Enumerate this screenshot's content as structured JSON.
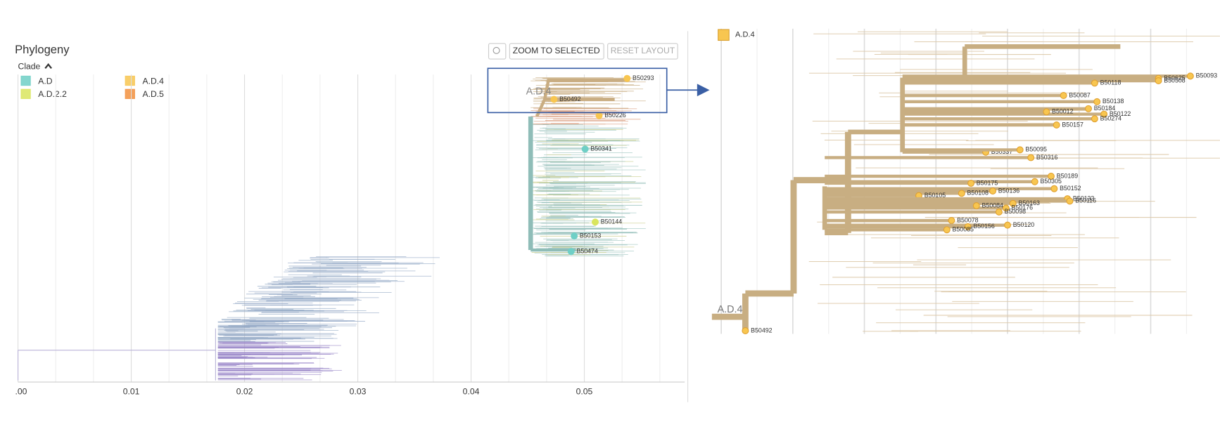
{
  "panel": {
    "title": "Phylogeny",
    "color_by": "Clade",
    "buttons": [
      "ZOOM TO SELECTED",
      "RESET LAYOUT"
    ]
  },
  "legend": [
    {
      "label": "A.D",
      "color": "#6fcfc6"
    },
    {
      "label": "A.D.2.2",
      "color": "#d9e55e"
    },
    {
      "label": "A.D.4",
      "color": "#f8c650"
    },
    {
      "label": "A.D.5",
      "color": "#f2903e"
    }
  ],
  "axis": {
    "ticks": [
      ".00",
      "0.01",
      "0.02",
      "0.03",
      "0.04",
      "0.05"
    ]
  },
  "tree": {
    "selection_label": "A.D.4",
    "tips": [
      "B50293",
      "B50492",
      "B50226",
      "B50341",
      "B50144",
      "B50153",
      "B50474"
    ]
  },
  "zoom": {
    "legend": "A.D.4",
    "clade_label": "A.D.4",
    "tips": [
      "B50093",
      "B50625",
      "B50508",
      "B50118",
      "B50087",
      "B50138",
      "B50184",
      "B50122",
      "B50274",
      "B50157",
      "B50012",
      "B50337",
      "B50095",
      "B50316",
      "B50189",
      "B50305",
      "B50175",
      "B50152",
      "B50136",
      "B50108",
      "B50105",
      "B50133",
      "B50116",
      "B50163",
      "B50176",
      "B50098",
      "B50084",
      "B50078",
      "B50120",
      "B50156",
      "B50085",
      "B50492"
    ]
  }
}
